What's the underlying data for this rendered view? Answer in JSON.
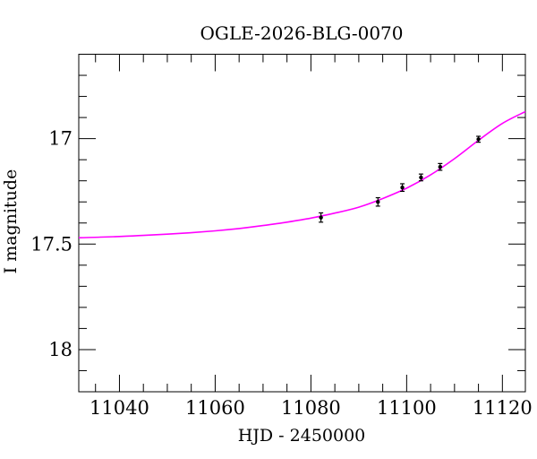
{
  "chart_data": {
    "type": "line",
    "title": "OGLE-2026-BLG-0070",
    "xlabel": "HJD - 2450000",
    "ylabel": "I magnitude",
    "xlim": [
      11031.5,
      11124.8
    ],
    "ylim": [
      16.6,
      18.2
    ],
    "y_axis_inverted": true,
    "grid": false,
    "legend": "none",
    "background_color": "#ffffff",
    "axis_color": "#000000",
    "x_ticks": [
      {
        "value": 11040,
        "label": "11040"
      },
      {
        "value": 11060,
        "label": "11060"
      },
      {
        "value": 11080,
        "label": "11080"
      },
      {
        "value": 11100,
        "label": "11100"
      },
      {
        "value": 11120,
        "label": "11120"
      }
    ],
    "x_minor_step": 5,
    "y_ticks": [
      {
        "value": 17,
        "label": "17"
      },
      {
        "value": 17.5,
        "label": "17.5"
      },
      {
        "value": 18,
        "label": "18"
      }
    ],
    "y_minor_step": 0.1,
    "series": [
      {
        "name": "model-curve",
        "kind": "line",
        "color": "#ff00ff",
        "points": [
          [
            11031.5,
            17.47
          ],
          [
            11036,
            17.467
          ],
          [
            11040,
            17.464
          ],
          [
            11045,
            17.459
          ],
          [
            11050,
            17.453
          ],
          [
            11055,
            17.446
          ],
          [
            11060,
            17.437
          ],
          [
            11065,
            17.426
          ],
          [
            11070,
            17.412
          ],
          [
            11075,
            17.396
          ],
          [
            11080,
            17.377
          ],
          [
            11085,
            17.353
          ],
          [
            11090,
            17.325
          ],
          [
            11095,
            17.284
          ],
          [
            11100,
            17.235
          ],
          [
            11105,
            17.172
          ],
          [
            11110,
            17.095
          ],
          [
            11115,
            17.008
          ],
          [
            11120,
            16.928
          ],
          [
            11124.8,
            16.872
          ]
        ]
      },
      {
        "name": "observations",
        "kind": "scatter",
        "color": "#000000",
        "marker": "filled-circle-with-error-bars",
        "points": [
          {
            "x": 11082.1,
            "mag": 17.374,
            "err": 0.022
          },
          {
            "x": 11094.0,
            "mag": 17.3,
            "err": 0.02
          },
          {
            "x": 11099.1,
            "mag": 17.232,
            "err": 0.018
          },
          {
            "x": 11103.0,
            "mag": 17.184,
            "err": 0.016
          },
          {
            "x": 11107.0,
            "mag": 17.134,
            "err": 0.016
          },
          {
            "x": 11115.0,
            "mag": 17.003,
            "err": 0.014
          }
        ]
      }
    ]
  }
}
